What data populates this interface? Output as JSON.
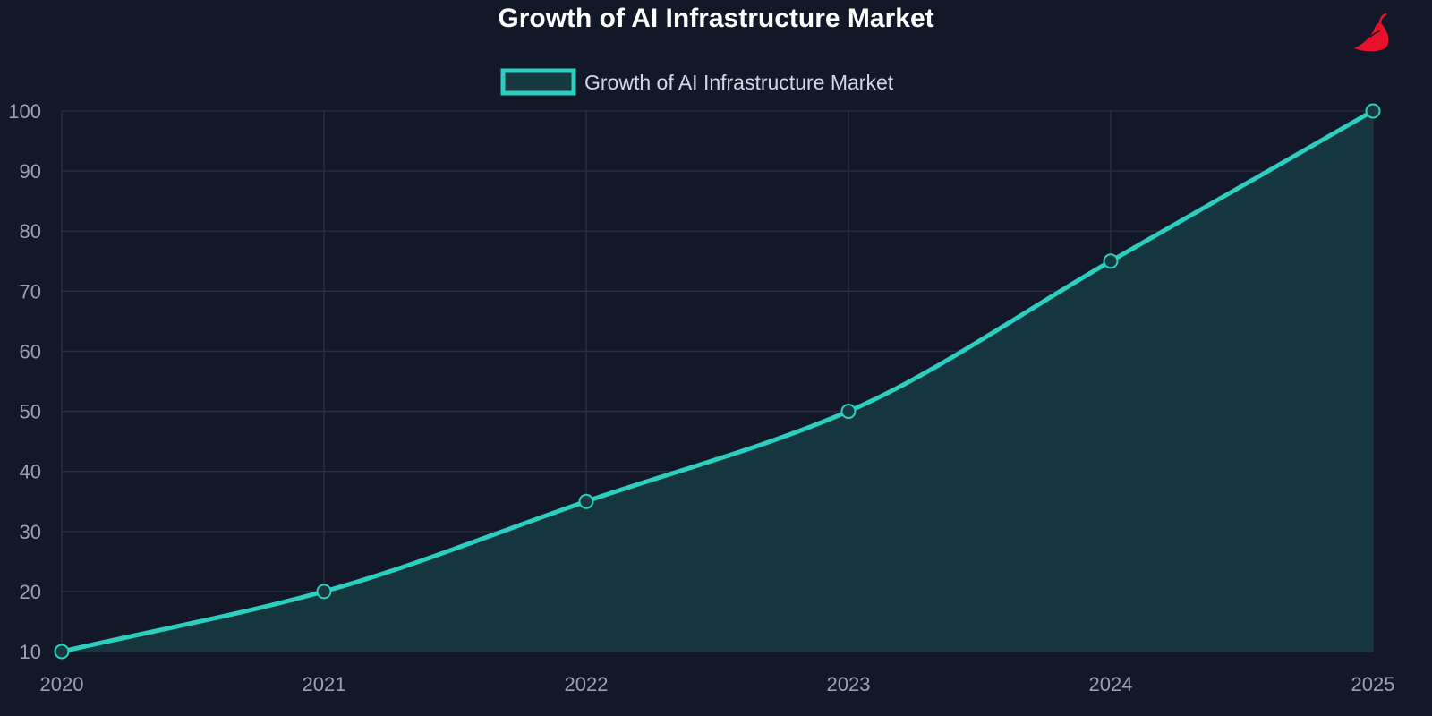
{
  "colors": {
    "background": "#121828",
    "grid": "#2a3142",
    "series": "#2ccfbf",
    "fill": "#16383f",
    "tick": "#9aa1ae",
    "title": "#ffffff",
    "legend_text": "#d4d8e0",
    "logo": "#e8102a"
  },
  "logo": {
    "icon": "chili-pepper-icon"
  },
  "chart_data": {
    "type": "line",
    "title": "Growth of AI Infrastructure Market",
    "xlabel": "",
    "ylabel": "",
    "x": [
      "2020",
      "2021",
      "2022",
      "2023",
      "2024",
      "2025"
    ],
    "series": [
      {
        "name": "Growth of AI Infrastructure Market",
        "values": [
          10,
          20,
          35,
          50,
          75,
          100
        ],
        "area_fill": true,
        "smooth": true,
        "markers": "hollow-circle"
      }
    ],
    "ylim": [
      10,
      100
    ],
    "yticks": [
      10,
      20,
      30,
      40,
      50,
      60,
      70,
      80,
      90,
      100
    ],
    "grid": true,
    "legend_position": "top-center"
  }
}
